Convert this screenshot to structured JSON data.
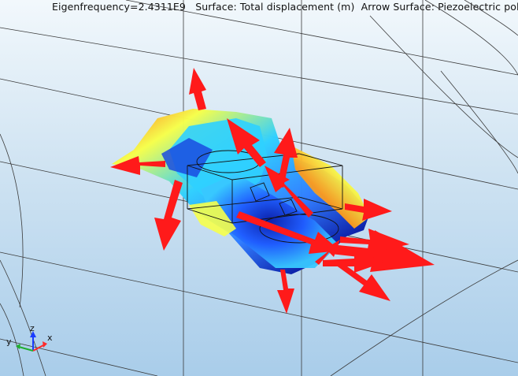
{
  "title": {
    "eigenfrequency": "Eigenfrequency=2.4311E9",
    "surface": "Surface: Total displacement (m)",
    "arrow_surface": "Arrow Surface: Piezoelectric pola"
  },
  "axes_triad": {
    "z": "z",
    "y": "y",
    "x": "x"
  },
  "colors": {
    "background_top": "#f2f8fc",
    "background_bottom": "#a9cdea",
    "arrow": "#ff1a1a",
    "colormap": [
      "#0a1ea8",
      "#2f7bff",
      "#2fd0ff",
      "#f6ff4a",
      "#ff9a1a",
      "#ff2a1a"
    ]
  },
  "icons": [
    "axis-triad-icon"
  ]
}
